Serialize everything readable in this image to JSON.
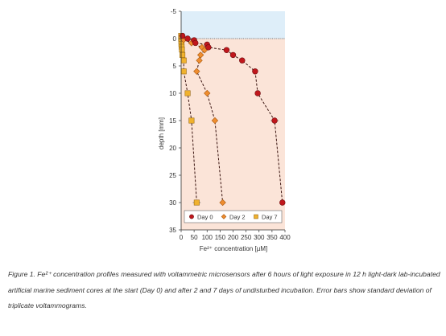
{
  "chart_data": {
    "type": "scatter",
    "xlabel": "Fe²⁺ concentration [µM]",
    "ylabel": "depth [mm]",
    "xlim": [
      0,
      400
    ],
    "ylim": [
      -5,
      35
    ],
    "y_inverted": true,
    "x_ticks": [
      "0",
      "50",
      "100",
      "150",
      "200",
      "250",
      "300",
      "350",
      "400"
    ],
    "y_ticks": [
      "-5",
      "0",
      "5",
      "10",
      "15",
      "20",
      "25",
      "30",
      "35"
    ],
    "regions": [
      {
        "y_from": -5,
        "y_to": 0,
        "color": "#deeef9"
      },
      {
        "y_from": 0,
        "y_to": 35,
        "color": "#fbe4d8"
      }
    ],
    "interface_depth": 0,
    "legend_position": "bottom-right",
    "series": [
      {
        "name": "Day 0",
        "marker": "circle",
        "color": "#c0171c",
        "points": [
          {
            "x": 5,
            "y": -0.5,
            "err": 2
          },
          {
            "x": 25,
            "y": 0,
            "err": 3
          },
          {
            "x": 50,
            "y": 0.3,
            "err": 4
          },
          {
            "x": 55,
            "y": 0.8,
            "err": 5
          },
          {
            "x": 100,
            "y": 1.1,
            "err": 8
          },
          {
            "x": 105,
            "y": 1.6,
            "err": 8
          },
          {
            "x": 175,
            "y": 2.1,
            "err": 10
          },
          {
            "x": 200,
            "y": 3,
            "err": 8
          },
          {
            "x": 235,
            "y": 4,
            "err": 8
          },
          {
            "x": 285,
            "y": 6,
            "err": 10
          },
          {
            "x": 295,
            "y": 10,
            "err": 8
          },
          {
            "x": 360,
            "y": 15,
            "err": 15
          },
          {
            "x": 390,
            "y": 30,
            "err": 5
          }
        ]
      },
      {
        "name": "Day 2",
        "marker": "diamond",
        "color": "#ef8d2f",
        "points": [
          {
            "x": 10,
            "y": 0.2,
            "err": 3
          },
          {
            "x": 40,
            "y": 0.8,
            "err": 5
          },
          {
            "x": 80,
            "y": 1.6,
            "err": 8
          },
          {
            "x": 90,
            "y": 2.1,
            "err": 8
          },
          {
            "x": 75,
            "y": 3,
            "err": 8
          },
          {
            "x": 70,
            "y": 4,
            "err": 6
          },
          {
            "x": 60,
            "y": 6,
            "err": 6
          },
          {
            "x": 100,
            "y": 10,
            "err": 8
          },
          {
            "x": 130,
            "y": 15,
            "err": 10
          },
          {
            "x": 160,
            "y": 30,
            "err": 10
          }
        ]
      },
      {
        "name": "Day 7",
        "marker": "square",
        "color": "#f0b22e",
        "points": [
          {
            "x": 0,
            "y": -0.5,
            "err": 1
          },
          {
            "x": 0,
            "y": 0,
            "err": 1
          },
          {
            "x": 1,
            "y": 0.5,
            "err": 1
          },
          {
            "x": 1,
            "y": 1,
            "err": 1
          },
          {
            "x": 2,
            "y": 1.5,
            "err": 1
          },
          {
            "x": 3,
            "y": 2,
            "err": 2
          },
          {
            "x": 5,
            "y": 3,
            "err": 3
          },
          {
            "x": 10,
            "y": 4,
            "err": 3
          },
          {
            "x": 10,
            "y": 6,
            "err": 3
          },
          {
            "x": 25,
            "y": 10,
            "err": 4
          },
          {
            "x": 40,
            "y": 15,
            "err": 5
          },
          {
            "x": 60,
            "y": 30,
            "err": 15
          }
        ]
      }
    ]
  },
  "caption": "Figure 1. Fe²⁺ concentration profiles measured with voltammetric microsensors after 6 hours of light exposure in 12 h light-dark lab-incubated artificial marine sediment cores at the start (Day 0) and after 2 and 7 days of undisturbed incubation. Error bars show standard deviation of triplicate voltammograms."
}
